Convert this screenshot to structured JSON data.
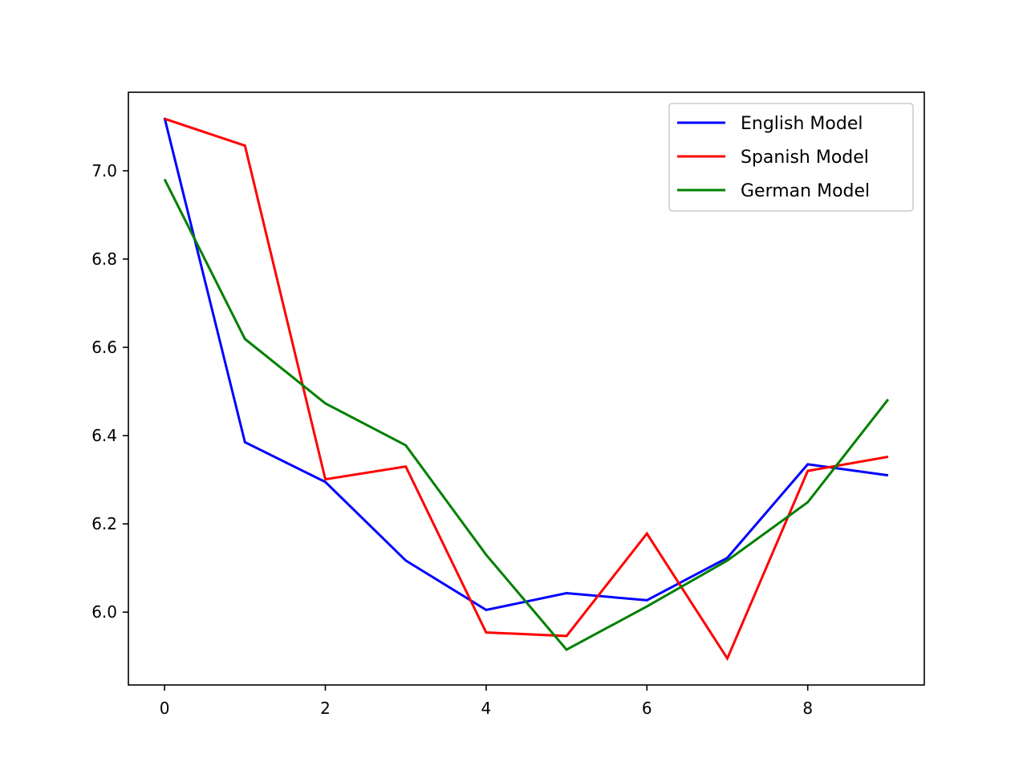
{
  "chart_data": {
    "type": "line",
    "title": "",
    "xlabel": "",
    "ylabel": "",
    "x": [
      0,
      1,
      2,
      3,
      4,
      5,
      6,
      7,
      8,
      9
    ],
    "xlim": [
      -0.45,
      9.45
    ],
    "ylim": [
      5.835,
      7.178
    ],
    "xticks": [
      0,
      2,
      4,
      6,
      8
    ],
    "xtick_labels": [
      "0",
      "2",
      "4",
      "6",
      "8"
    ],
    "yticks": [
      6.0,
      6.2,
      6.4,
      6.6,
      6.8,
      7.0
    ],
    "ytick_labels": [
      "6.0",
      "6.2",
      "6.4",
      "6.6",
      "6.8",
      "7.0"
    ],
    "grid": false,
    "legend_position": "upper right",
    "series": [
      {
        "name": "English Model",
        "color": "#0000ff",
        "values": [
          7.12,
          6.385,
          6.295,
          6.117,
          6.005,
          6.043,
          6.027,
          6.123,
          6.335,
          6.31
        ]
      },
      {
        "name": "Spanish Model",
        "color": "#ff0000",
        "values": [
          7.118,
          7.057,
          6.301,
          6.33,
          5.954,
          5.946,
          6.178,
          5.895,
          6.32,
          6.352
        ]
      },
      {
        "name": "German Model",
        "color": "#008000",
        "values": [
          6.981,
          6.619,
          6.473,
          6.378,
          6.13,
          5.915,
          6.013,
          6.117,
          6.249,
          6.482
        ]
      }
    ]
  }
}
